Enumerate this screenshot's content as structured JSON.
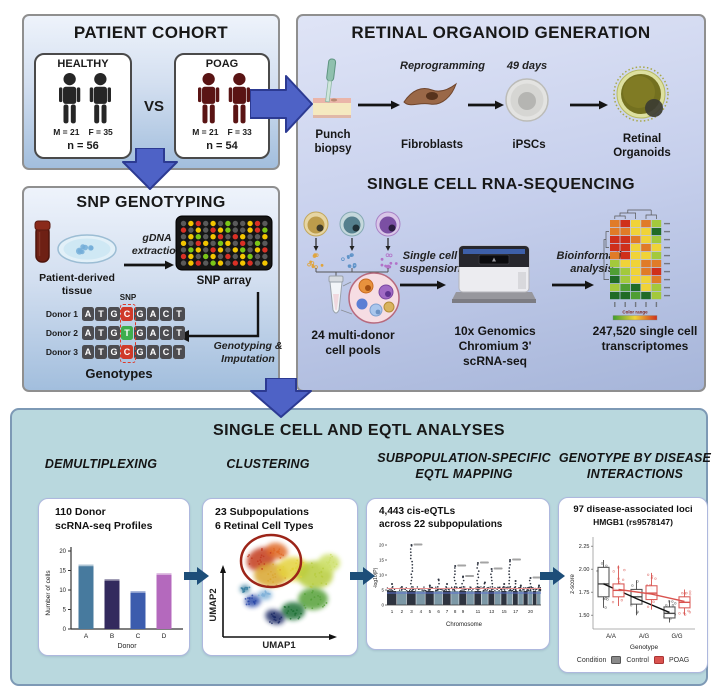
{
  "cohort": {
    "title": "PATIENT COHORT",
    "vs": "VS",
    "healthy": {
      "label": "HEALTHY",
      "m": "M = 21",
      "f": "F = 35",
      "n": "n = 56"
    },
    "poag": {
      "label": "POAG",
      "m": "M = 21",
      "f": "F = 33",
      "n": "n = 54"
    }
  },
  "organoid": {
    "title": "RETINAL ORGANOID GENERATION",
    "reprogramming": "Reprogramming",
    "days": "49 days",
    "labels": [
      "Punch biopsy",
      "Fibroblasts",
      "iPSCs",
      "Retinal Organoids"
    ]
  },
  "snp": {
    "title": "SNP GENOTYPING",
    "tissue_label": "Patient-derived tissue",
    "gdna_label": "gDNA extraction",
    "array_label": "SNP array",
    "snp_tag": "SNP",
    "imputation_label": "Genotyping & Imputation",
    "genotypes_label": "Genotypes",
    "donors": [
      {
        "name": "Donor 1",
        "seq": "ATGCGACT",
        "snp_index": 3,
        "snp_color": "#cf3a2a"
      },
      {
        "name": "Donor 2",
        "seq": "ATGTGACT",
        "snp_index": 3,
        "snp_color": "#3fae4e"
      },
      {
        "name": "Donor 3",
        "seq": "ATGCGACT",
        "snp_index": 3,
        "snp_color": "#cf3a2a"
      }
    ]
  },
  "scrnaseq": {
    "title": "SINGLE CELL RNA-SEQUENCING",
    "pools_label": "24 multi-donor cell pools",
    "suspension_label": "Single cell suspension",
    "machine_label": "10x Genomics Chromium 3' scRNA-seq",
    "bioinformatic_label": "Bioinformatic analysis",
    "transcriptomes_label": "247,520 single cell transcriptomes"
  },
  "analyses": {
    "title": "SINGLE CELL AND EQTL ANALYSES",
    "columns": [
      {
        "header": "DEMULTIPLEXING"
      },
      {
        "header": "CLUSTERING"
      },
      {
        "header": "SUBPOPULATION-SPECIFIC EQTL MAPPING"
      },
      {
        "header": "GENOTYPE BY DISEASE INTERACTIONS"
      }
    ],
    "cards": [
      {
        "title1": "110 Donor",
        "title2": "scRNA-seq Profiles"
      },
      {
        "title1": "23 Subpopulations",
        "title2": "6 Retinal Cell Types"
      },
      {
        "title1": "4,443 cis-eQTLs",
        "title2": "across 22 subpopulations"
      },
      {
        "title1": "97 disease-associated loci",
        "subtitle": "HMGB1 (rs9578147)"
      }
    ]
  },
  "chart_data": [
    {
      "id": "donor-bar",
      "type": "bar",
      "title": "110 Donor scRNA-seq Profiles",
      "categories": [
        "A",
        "B",
        "C",
        "D"
      ],
      "values": [
        16.5,
        12.8,
        9.7,
        14.3
      ],
      "colors": [
        "#477a9e",
        "#332a5e",
        "#3c5cad",
        "#b469bd"
      ],
      "xlabel": "Donor",
      "ylabel": "Number of cells",
      "ylim": [
        0,
        20
      ],
      "yticks": [
        0,
        5,
        10,
        15,
        20
      ],
      "grid": false,
      "legend": null
    },
    {
      "id": "umap",
      "type": "scatter",
      "title": "23 Subpopulations, 6 Retinal Cell Types",
      "xlabel": "UMAP1",
      "ylabel": "UMAP2",
      "clusters": [
        {
          "color": "#c23a1f",
          "cx": 52,
          "cy": 26,
          "rx": 15,
          "ry": 11,
          "rot": -25
        },
        {
          "color": "#e06a28",
          "cx": 68,
          "cy": 18,
          "rx": 11,
          "ry": 8,
          "rot": 15
        },
        {
          "color": "#d9a62e",
          "cx": 62,
          "cy": 42,
          "rx": 17,
          "ry": 12,
          "rot": 0
        },
        {
          "color": "#e4d23c",
          "cx": 84,
          "cy": 36,
          "rx": 16,
          "ry": 12,
          "rot": 0
        },
        {
          "color": "#b7cc3e",
          "cx": 106,
          "cy": 42,
          "rx": 18,
          "ry": 14,
          "rot": 0
        },
        {
          "color": "#cde06a",
          "cx": 120,
          "cy": 30,
          "rx": 11,
          "ry": 9,
          "rot": 0
        },
        {
          "color": "#55a038",
          "cx": 104,
          "cy": 66,
          "rx": 15,
          "ry": 11,
          "rot": 0
        },
        {
          "color": "#1f7034",
          "cx": 84,
          "cy": 78,
          "rx": 12,
          "ry": 9,
          "rot": 0
        },
        {
          "color": "#1c2a66",
          "cx": 66,
          "cy": 84,
          "rx": 10,
          "ry": 7,
          "rot": 20
        },
        {
          "color": "#2c48a8",
          "cx": 44,
          "cy": 68,
          "rx": 8,
          "ry": 6,
          "rot": -10
        },
        {
          "color": "#7fb0d8",
          "cx": 56,
          "cy": 62,
          "rx": 7,
          "ry": 5,
          "rot": 0
        },
        {
          "color": "#3a7fa0",
          "cx": 36,
          "cy": 56,
          "rx": 5,
          "ry": 4,
          "rot": 0
        }
      ],
      "highlight_circle": {
        "cx": 62,
        "cy": 28,
        "rx": 30,
        "ry": 26,
        "color": "#9c2418"
      }
    },
    {
      "id": "manhattan",
      "type": "scatter",
      "title": "4,443 cis-eQTLs across 22 subpopulations",
      "xlabel": "Chromosome",
      "ylabel": "-log10(P)",
      "yticks": [
        0,
        5,
        10,
        15,
        20
      ],
      "ylim": [
        0,
        22
      ],
      "chromosomes": 22,
      "xtick_chroms": [
        1,
        2,
        3,
        4,
        5,
        6,
        7,
        8,
        9,
        11,
        13,
        15,
        17,
        20
      ],
      "band_colors": [
        "#2e3440",
        "#7c98a6"
      ],
      "threshold_lines": [
        {
          "color": "#e89090",
          "value": 5.5
        },
        {
          "color": "#5a6fd0",
          "value": 4.0
        }
      ],
      "peaks": [
        {
          "chrom": 1,
          "height": 7
        },
        {
          "chrom": 2,
          "height": 6
        },
        {
          "chrom": 3,
          "height": 20
        },
        {
          "chrom": 5,
          "height": 6.5
        },
        {
          "chrom": 6,
          "height": 8.5
        },
        {
          "chrom": 7,
          "height": 7
        },
        {
          "chrom": 8,
          "height": 13
        },
        {
          "chrom": 9,
          "height": 9.5
        },
        {
          "chrom": 11,
          "height": 14
        },
        {
          "chrom": 12,
          "height": 7.5
        },
        {
          "chrom": 13,
          "height": 12
        },
        {
          "chrom": 15,
          "height": 7
        },
        {
          "chrom": 16,
          "height": 15
        },
        {
          "chrom": 17,
          "height": 8
        },
        {
          "chrom": 18,
          "height": 6.5
        },
        {
          "chrom": 20,
          "height": 9
        },
        {
          "chrom": 22,
          "height": 6.5
        }
      ]
    },
    {
      "id": "gxe-box",
      "type": "boxplot",
      "title": "97 disease-associated loci",
      "subtitle": "HMGB1 (rs9578147)",
      "xlabel": "Genotype",
      "ylabel": "z-score",
      "categories": [
        "A/A",
        "A/G",
        "G/G"
      ],
      "ytick_labels": [
        "1.50",
        "1.75",
        "2.00",
        "2.25"
      ],
      "yticks": [
        1.5,
        1.75,
        2.0,
        2.25
      ],
      "ylim": [
        1.35,
        2.35
      ],
      "series": [
        {
          "name": "Control",
          "color": "#4a4a4a",
          "boxes": [
            {
              "low": 1.58,
              "q1": 1.7,
              "med": 1.84,
              "q3": 2.02,
              "high": 2.1
            },
            {
              "low": 1.5,
              "q1": 1.62,
              "med": 1.7,
              "q3": 1.78,
              "high": 1.88
            },
            {
              "low": 1.42,
              "q1": 1.47,
              "med": 1.52,
              "q3": 1.59,
              "high": 1.66
            }
          ],
          "trend": [
            1.84,
            1.68,
            1.53
          ]
        },
        {
          "name": "POAG",
          "color": "#d9534f",
          "boxes": [
            {
              "low": 1.6,
              "q1": 1.7,
              "med": 1.77,
              "q3": 1.84,
              "high": 2.04
            },
            {
              "low": 1.56,
              "q1": 1.67,
              "med": 1.74,
              "q3": 1.82,
              "high": 1.96
            },
            {
              "low": 1.5,
              "q1": 1.58,
              "med": 1.64,
              "q3": 1.7,
              "high": 1.78
            }
          ],
          "trend": [
            1.78,
            1.73,
            1.65
          ]
        }
      ],
      "legend": {
        "label": "Condition",
        "entries": [
          "Control",
          "POAG"
        ],
        "colors": [
          "#8a8a8a",
          "#d9534f"
        ]
      }
    },
    {
      "id": "heatmap",
      "type": "heatmap",
      "rows": 10,
      "cols": 5,
      "palette": {
        "R": "#cf2f1b",
        "O": "#e07b28",
        "Y": "#f0d338",
        "G": "#a3c93c",
        "D": "#4f9e33",
        "K": "#206b26"
      },
      "cells": [
        "ORYOG",
        "OOYYK",
        "RROYG",
        "RRYOY",
        "ORYYG",
        "GYYOO",
        "DGYOR",
        "KGYYO",
        "GDKYG",
        "KKDKG"
      ],
      "legend_label": "Color range"
    },
    {
      "id": "snp-array",
      "type": "heatmap",
      "rows": 7,
      "cols": 12,
      "palette": {
        "g": "#5a5a5a",
        "r": "#d93025",
        "y": "#f2c500",
        "n": "#7bc618"
      },
      "cells": [
        "gyrgygnggyrg",
        "rgygrynggyrn",
        "gyngyrgryggy",
        "ygrygnygrgng",
        "gnygrygyngyr",
        "rygnygrgyngg",
        "gyrgnygryrgy"
      ]
    }
  ]
}
